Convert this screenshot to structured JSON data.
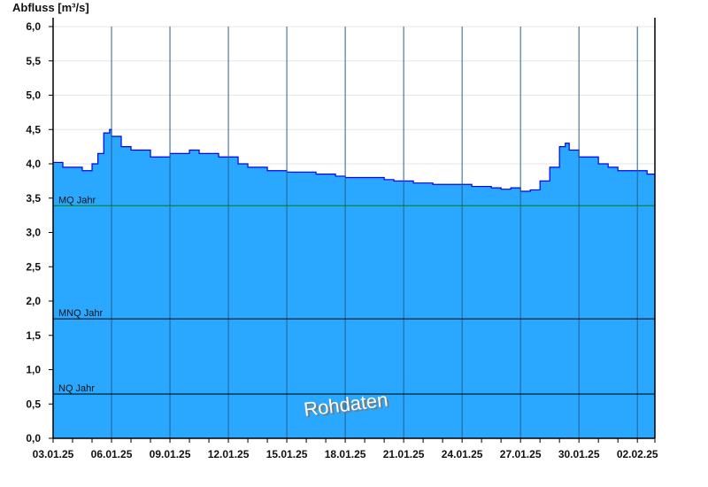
{
  "chart_data": {
    "type": "area",
    "title": "",
    "ylabel": "Abfluss [m³/s]",
    "xlabel": "",
    "ylim": [
      0,
      6.0
    ],
    "yticks": [
      "0,0",
      "0,5",
      "1,0",
      "1,5",
      "2,0",
      "2,5",
      "3,0",
      "3,5",
      "4,0",
      "4,5",
      "5,0",
      "5,5",
      "6,0"
    ],
    "xrange": [
      "03.01.25 00:00",
      "02.02.25 21:00"
    ],
    "xticks": [
      "03.01.25",
      "06.01.25",
      "09.01.25",
      "12.01.25",
      "15.01.25",
      "18.01.25",
      "21.01.25",
      "24.01.25",
      "27.01.25",
      "30.01.25",
      "02.02.25"
    ],
    "grid": true,
    "fill_color": "#2aa8ff",
    "line_color": "#0000ee",
    "series": [
      {
        "x_days_from_start": [
          0,
          0.5,
          1,
          1.5,
          2,
          2.3,
          2.6,
          2.9,
          3,
          3.5,
          4,
          4.5,
          5,
          5.5,
          6,
          6.5,
          7,
          7.5,
          8,
          8.5,
          9,
          9.5,
          10,
          10.5,
          11,
          11.5,
          12,
          12.5,
          13,
          13.5,
          14,
          14.5,
          15,
          15.5,
          16,
          16.5,
          17,
          17.5,
          18,
          18.5,
          19,
          19.5,
          20,
          20.5,
          21,
          21.5,
          22,
          22.5,
          23,
          23.5,
          24,
          24.5,
          25,
          25.5,
          26,
          26.3,
          26.5,
          27,
          27.5,
          28,
          28.5,
          29,
          29.5,
          30,
          30.5,
          30.9
        ],
        "values": [
          4.02,
          3.95,
          3.95,
          3.9,
          4.0,
          4.15,
          4.45,
          4.5,
          4.4,
          4.25,
          4.2,
          4.2,
          4.1,
          4.1,
          4.15,
          4.15,
          4.2,
          4.15,
          4.15,
          4.1,
          4.1,
          4.0,
          3.95,
          3.95,
          3.9,
          3.9,
          3.88,
          3.88,
          3.88,
          3.85,
          3.85,
          3.82,
          3.8,
          3.8,
          3.8,
          3.8,
          3.77,
          3.75,
          3.75,
          3.72,
          3.72,
          3.7,
          3.7,
          3.7,
          3.7,
          3.67,
          3.67,
          3.65,
          3.63,
          3.65,
          3.6,
          3.62,
          3.75,
          3.95,
          4.25,
          4.3,
          4.2,
          4.1,
          4.1,
          4.0,
          3.95,
          3.9,
          3.9,
          3.9,
          3.85,
          3.85
        ]
      }
    ],
    "reference_lines": [
      {
        "label": "MQ Jahr",
        "value": 3.39,
        "color": "#008000"
      },
      {
        "label": "MNQ Jahr",
        "value": 1.74,
        "color": "#000000"
      },
      {
        "label": "NQ Jahr",
        "value": 0.645,
        "color": "#000000"
      }
    ],
    "annotation": "Rohdaten"
  }
}
